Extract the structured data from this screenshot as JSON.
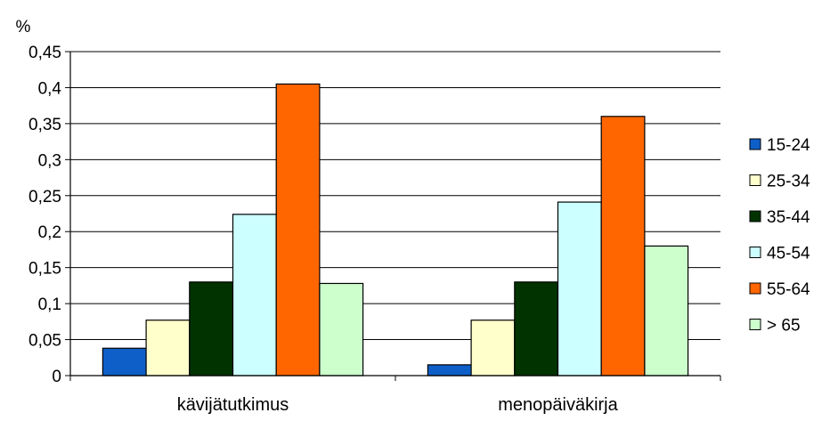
{
  "chart_data": {
    "type": "bar",
    "ylabel": "%",
    "ylim": [
      0,
      0.45
    ],
    "yticks": [
      "0",
      "0,05",
      "0,1",
      "0,15",
      "0,2",
      "0,25",
      "0,3",
      "0,35",
      "0,4",
      "0,45"
    ],
    "categories": [
      "kävijätutkimus",
      "menopäiväkirja"
    ],
    "series": [
      {
        "name": "15-24",
        "color": "#0f5fc8",
        "values": [
          0.038,
          0.015
        ]
      },
      {
        "name": "25-34",
        "color": "#ffffcc",
        "values": [
          0.077,
          0.077
        ]
      },
      {
        "name": "35-44",
        "color": "#003300",
        "values": [
          0.13,
          0.13
        ]
      },
      {
        "name": "45-54",
        "color": "#ccffff",
        "values": [
          0.224,
          0.241
        ]
      },
      {
        "name": "55-64",
        "color": "#ff6600",
        "values": [
          0.405,
          0.36
        ]
      },
      {
        "name": "> 65",
        "color": "#ccffcc",
        "values": [
          0.128,
          0.18
        ]
      }
    ],
    "grid": true,
    "legend": "right"
  }
}
